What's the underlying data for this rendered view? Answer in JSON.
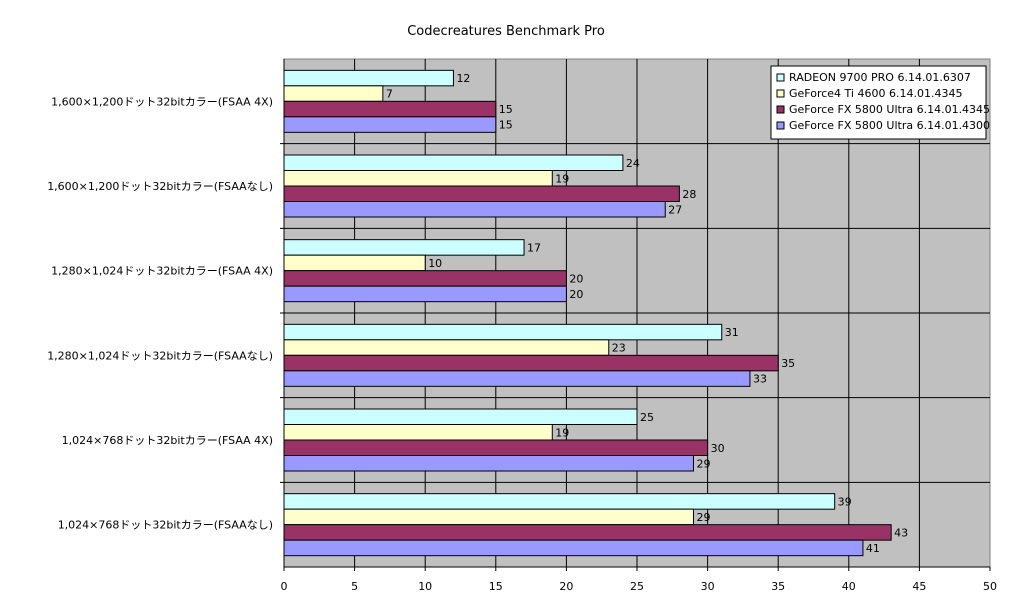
{
  "chart_data": {
    "type": "bar",
    "orientation": "horizontal",
    "title": "Codecreatures Benchmark Pro",
    "xlabel": "",
    "ylabel": "",
    "xlim": [
      0,
      50
    ],
    "xticks": [
      0,
      5,
      10,
      15,
      20,
      25,
      30,
      35,
      40,
      45,
      50
    ],
    "grid": true,
    "legend_position": "top-right",
    "categories": [
      "1,600×1,200ドット32bitカラー(FSAA 4X)",
      "1,600×1,200ドット32bitカラー(FSAAなし)",
      "1,280×1,024ドット32bitカラー(FSAA 4X)",
      "1,280×1,024ドット32bitカラー(FSAAなし)",
      "1,024×768ドット32bitカラー(FSAA 4X)",
      "1,024×768ドット32bitカラー(FSAAなし)"
    ],
    "series": [
      {
        "name": "RADEON 9700 PRO 6.14.01.6307",
        "color": "#ccffff",
        "values": [
          12,
          24,
          17,
          31,
          25,
          39
        ],
        "labels": [
          "12",
          "24",
          "17",
          "31",
          "25",
          "39"
        ]
      },
      {
        "name": "GeForce4 Ti 4600 6.14.01.4345",
        "color": "#ffffcc",
        "values": [
          7,
          19,
          10,
          23,
          19,
          29
        ],
        "labels": [
          "7",
          "19",
          "10",
          "23",
          "19",
          "29"
        ]
      },
      {
        "name": "GeForce FX 5800 Ultra 6.14.01.4345",
        "color": "#993366",
        "values": [
          15,
          28,
          20,
          35,
          30,
          43
        ],
        "labels": [
          "15",
          "28",
          "20",
          "35",
          "30",
          "43"
        ]
      },
      {
        "name": "GeForce FX 5800 Ultra 6.14.01.4300",
        "color": "#9999ff",
        "values": [
          15,
          27,
          20,
          33,
          29,
          41
        ],
        "labels": [
          "15",
          "27",
          "20",
          "33",
          "29",
          "41"
        ]
      }
    ]
  }
}
